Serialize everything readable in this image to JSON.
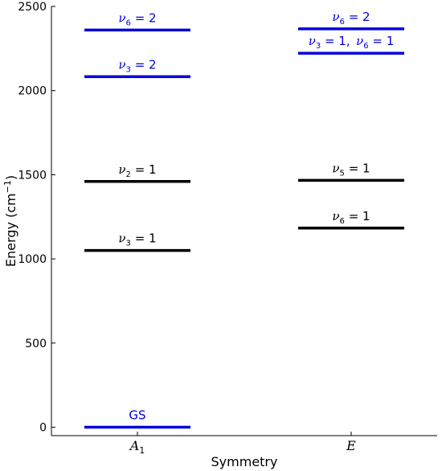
{
  "chart_data": {
    "type": "energy-level diagram",
    "xlabel": "Symmetry",
    "ylabel": "Energy (cm",
    "ylabel_superscript": "−1",
    "ylabel_close": ")",
    "ylim": [
      -50,
      2500
    ],
    "yticks": [
      0,
      500,
      1000,
      1500,
      2000,
      2500
    ],
    "categories": [
      {
        "name": "A",
        "subscript": "1"
      },
      {
        "name": "E",
        "subscript": ""
      }
    ],
    "colors": {
      "fundamental": "#000000",
      "overtone": "#0000dd"
    },
    "levels": [
      {
        "category": "A",
        "energy": 2360,
        "color": "#0000dd",
        "label_parts": [
          {
            "mode": "nu",
            "sub": "6",
            "value": "2"
          }
        ]
      },
      {
        "category": "A",
        "energy": 2083,
        "color": "#0000dd",
        "label_parts": [
          {
            "mode": "nu",
            "sub": "3",
            "value": "2"
          }
        ]
      },
      {
        "category": "A",
        "energy": 1460,
        "color": "#000000",
        "label_parts": [
          {
            "mode": "nu",
            "sub": "2",
            "value": "1"
          }
        ]
      },
      {
        "category": "A",
        "energy": 1050,
        "color": "#000000",
        "label_parts": [
          {
            "mode": "nu",
            "sub": "3",
            "value": "1"
          }
        ]
      },
      {
        "category": "A",
        "energy": 0,
        "color": "#0000dd",
        "label_parts": [
          {
            "mode": "text",
            "text": "GS"
          }
        ]
      },
      {
        "category": "E",
        "energy": 2367,
        "color": "#0000dd",
        "label_parts": [
          {
            "mode": "nu",
            "sub": "6",
            "value": "2"
          }
        ]
      },
      {
        "category": "E",
        "energy": 2222,
        "color": "#0000dd",
        "label_parts": [
          {
            "mode": "nu",
            "sub": "3",
            "value": "1"
          },
          {
            "mode": "nu",
            "sub": "6",
            "value": "1"
          }
        ]
      },
      {
        "category": "E",
        "energy": 1467,
        "color": "#000000",
        "label_parts": [
          {
            "mode": "nu",
            "sub": "5",
            "value": "1"
          }
        ]
      },
      {
        "category": "E",
        "energy": 1183,
        "color": "#000000",
        "label_parts": [
          {
            "mode": "nu",
            "sub": "6",
            "value": "1"
          }
        ]
      }
    ]
  }
}
